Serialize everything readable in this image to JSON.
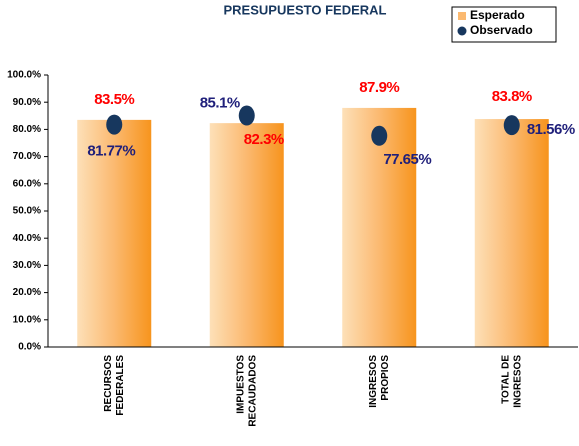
{
  "chart_data": {
    "type": "bar",
    "title": "PRESUPUESTO FEDERAL",
    "categories": [
      [
        "RECURSOS",
        "FEDERALES"
      ],
      [
        "IMPUESTOS",
        "RECAUDADOS"
      ],
      [
        "INGRESOS",
        "PROPIOS"
      ],
      [
        "TOTAL DE",
        "INGRESOS"
      ]
    ],
    "series": [
      {
        "name": "Esperado",
        "type": "bar",
        "color": "#f7941d",
        "values": [
          83.5,
          82.3,
          87.9,
          83.8
        ],
        "value_labels": [
          "83.5%",
          "82.3%",
          "87.9%",
          "83.8%"
        ],
        "label_color": "#ff0000"
      },
      {
        "name": "Observado",
        "type": "scatter",
        "color": "#17375e",
        "values": [
          81.77,
          85.1,
          77.65,
          81.56
        ],
        "value_labels": [
          "81.77%",
          "85.1%",
          "77.65%",
          "81.56%"
        ],
        "label_color": "#1f1f7a"
      }
    ],
    "ylim": [
      0,
      100
    ],
    "yticks": [
      {
        "value": 0,
        "label": "0.0%"
      },
      {
        "value": 10,
        "label": "10.0%"
      },
      {
        "value": 20,
        "label": "20.0%"
      },
      {
        "value": 30,
        "label": "30.0%"
      },
      {
        "value": 40,
        "label": "40.0%"
      },
      {
        "value": 50,
        "label": "50.0%"
      },
      {
        "value": 60,
        "label": "60.0%"
      },
      {
        "value": 70,
        "label": "70.0%"
      },
      {
        "value": 80,
        "label": "80.0%"
      },
      {
        "value": 90,
        "label": "90.0%"
      },
      {
        "value": 100,
        "label": "100.0%"
      }
    ],
    "legend": "top-right"
  }
}
